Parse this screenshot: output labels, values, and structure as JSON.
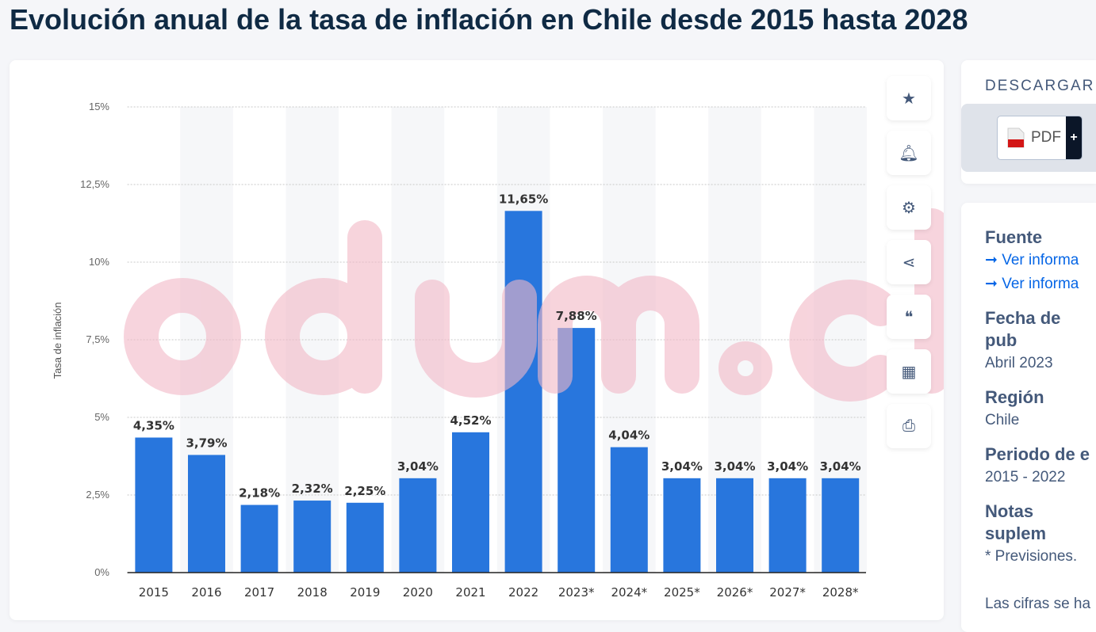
{
  "title": "Evolución anual de la tasa de inflación en Chile desde 2015 hasta 2028",
  "watermark": "odum.cl",
  "side_buttons": [
    "star-icon",
    "bell-icon",
    "gear-icon",
    "share-icon",
    "quote-icon",
    "flag-icon",
    "print-icon"
  ],
  "download": {
    "title": "DESCARGAR",
    "pdf_label": "PDF",
    "plus": "+"
  },
  "info": {
    "source_title": "Fuente",
    "links": [
      "Ver informa",
      "Ver informa"
    ],
    "pub_title": "Fecha de pub",
    "pub_value": "Abril 2023",
    "region_title": "Región",
    "region_value": "Chile",
    "period_title": "Periodo de e",
    "period_value": "2015 - 2022",
    "notes_title": "Notas suplem",
    "notes_value": "* Previsiones.",
    "footer": "Las cifras se ha"
  },
  "colors": {
    "bar": "#2876dd",
    "watermark": "#f2b8c6"
  },
  "chart_data": {
    "type": "bar",
    "title": "",
    "xlabel": "",
    "ylabel": "Tasa de inflación",
    "ylim": [
      0,
      15
    ],
    "yticks": [
      0,
      2.5,
      5,
      7.5,
      10,
      12.5,
      15
    ],
    "ytick_labels": [
      "0%",
      "2,5%",
      "5%",
      "7,5%",
      "10%",
      "12,5%",
      "15%"
    ],
    "categories": [
      "2015",
      "2016",
      "2017",
      "2018",
      "2019",
      "2020",
      "2021",
      "2022",
      "2023*",
      "2024*",
      "2025*",
      "2026*",
      "2027*",
      "2028*"
    ],
    "values": [
      4.35,
      3.79,
      2.18,
      2.32,
      2.25,
      3.04,
      4.52,
      11.65,
      7.88,
      4.04,
      3.04,
      3.04,
      3.04,
      3.04
    ],
    "data_labels": [
      "4,35%",
      "3,79%",
      "2,18%",
      "2,32%",
      "2,25%",
      "3,04%",
      "4,52%",
      "11,65%",
      "7,88%",
      "4,04%",
      "3,04%",
      "3,04%",
      "3,04%",
      "3,04%"
    ],
    "grid": true,
    "legend": "none"
  }
}
